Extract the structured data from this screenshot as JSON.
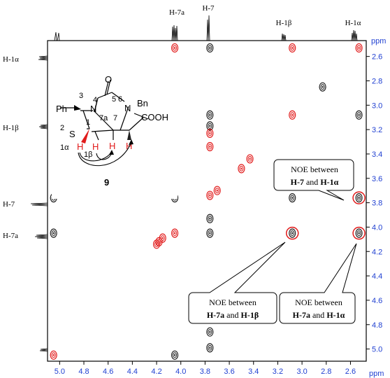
{
  "chart_data": {
    "type": "scatter",
    "title": "",
    "unit": "ppm",
    "x_axis": {
      "label": "ppm",
      "reversed": true,
      "range": [
        5.1,
        2.47
      ],
      "ticks": [
        5.0,
        4.8,
        4.6,
        4.4,
        4.2,
        4.0,
        3.8,
        3.6,
        3.4,
        3.2,
        3.0,
        2.8,
        2.6
      ],
      "tick_labels": [
        "5.0",
        "4.8",
        "4.6",
        "4.4",
        "4.2",
        "4.0",
        "3.8",
        "3.6",
        "3.4",
        "3.2",
        "3.0",
        "2.8",
        "2.6"
      ]
    },
    "y_axis": {
      "label": "ppm",
      "reversed": true,
      "range": [
        2.47,
        5.1
      ],
      "ticks": [
        2.6,
        2.8,
        3.0,
        3.2,
        3.4,
        3.6,
        3.8,
        4.0,
        4.2,
        4.4,
        4.6,
        4.8,
        5.0
      ],
      "tick_labels": [
        "2.6",
        "2.8",
        "3.0",
        "3.2",
        "3.4",
        "3.6",
        "3.8",
        "4.0",
        "4.2",
        "4.4",
        "4.6",
        "4.8",
        "5.0"
      ]
    },
    "top_peak_labels": [
      {
        "text": "H-7a",
        "ppm": 4.05
      },
      {
        "text": "H-7",
        "ppm": 3.76
      },
      {
        "text": "H-1β",
        "ppm": 3.08
      },
      {
        "text": "H-1α",
        "ppm": 2.53
      }
    ],
    "left_peak_labels": [
      {
        "text": "H-1α",
        "ppm": 2.53
      },
      {
        "text": "H-1β",
        "ppm": 3.08
      },
      {
        "text": "H-7",
        "ppm": 3.76
      },
      {
        "text": "H-7a",
        "ppm": 4.05
      }
    ],
    "series": [
      {
        "name": "positive",
        "color": "#222222",
        "points": [
          {
            "x": 3.76,
            "y": 2.53
          },
          {
            "x": 2.53,
            "y": 3.08
          },
          {
            "x": 3.76,
            "y": 3.08
          },
          {
            "x": 4.05,
            "y": 3.76
          },
          {
            "x": 3.08,
            "y": 3.76
          },
          {
            "x": 2.53,
            "y": 3.76
          },
          {
            "x": 5.05,
            "y": 4.05
          },
          {
            "x": 3.76,
            "y": 4.05
          },
          {
            "x": 3.08,
            "y": 4.05
          },
          {
            "x": 2.53,
            "y": 4.05
          },
          {
            "x": 4.05,
            "y": 5.05
          },
          {
            "x": 3.76,
            "y": 4.86
          },
          {
            "x": 3.76,
            "y": 4.99
          },
          {
            "x": 3.76,
            "y": 3.93
          },
          {
            "x": 3.76,
            "y": 3.17
          },
          {
            "x": 5.05,
            "y": 3.76
          },
          {
            "x": 2.83,
            "y": 2.85
          },
          {
            "x": 4.18,
            "y": 3.07
          }
        ]
      },
      {
        "name": "negative",
        "color": "#e11b1b",
        "points": [
          {
            "x": 4.05,
            "y": 2.53
          },
          {
            "x": 2.53,
            "y": 2.53
          },
          {
            "x": 3.08,
            "y": 2.53
          },
          {
            "x": 3.08,
            "y": 3.08
          },
          {
            "x": 3.76,
            "y": 3.23
          },
          {
            "x": 3.43,
            "y": 3.44
          },
          {
            "x": 3.5,
            "y": 3.52
          },
          {
            "x": 3.7,
            "y": 3.7
          },
          {
            "x": 3.76,
            "y": 3.74
          },
          {
            "x": 4.05,
            "y": 4.05
          },
          {
            "x": 5.05,
            "y": 5.05
          },
          {
            "x": 3.76,
            "y": 3.34
          },
          {
            "x": 3.76,
            "y": 4.7
          },
          {
            "x": 4.15,
            "y": 4.09
          },
          {
            "x": 4.18,
            "y": 4.12
          },
          {
            "x": 4.2,
            "y": 4.14
          }
        ]
      }
    ],
    "highlighted_peaks": [
      {
        "x": 2.53,
        "y": 3.76
      },
      {
        "x": 3.08,
        "y": 4.05
      },
      {
        "x": 2.53,
        "y": 4.05
      }
    ],
    "annotations": [
      {
        "lines": [
          [
            "NOE between",
            ""
          ],
          [
            "H-7",
            " and "
          ],
          [
            "H-1α",
            ""
          ]
        ],
        "rich": [
          {
            "t": "NOE between",
            "b": false
          }
        ],
        "target": {
          "x": 2.53,
          "y": 3.76
        }
      },
      {
        "lines": [
          "NOE between",
          "H-7a and H-1β"
        ],
        "target": {
          "x": 3.08,
          "y": 4.05
        }
      },
      {
        "lines": [
          "NOE between",
          "H-7a and H-1α"
        ],
        "target": {
          "x": 2.53,
          "y": 4.05
        }
      }
    ],
    "callout_text": {
      "c1_line1": "NOE between",
      "c1_a": "H-7",
      "c1_mid": " and ",
      "c1_b": "H-1α",
      "c2_line1": "NOE between",
      "c2_a": "H-7a",
      "c2_mid": " and ",
      "c2_b": "H-1β",
      "c3_line1": "NOE between",
      "c3_a": "H-7a",
      "c3_mid": " and ",
      "c3_b": "H-1α"
    },
    "grid": false,
    "legend": "none"
  },
  "molecule": {
    "compound_number": "9",
    "labels": {
      "ph": "Ph",
      "o": "O",
      "n4": "N",
      "n6": "N",
      "bn": "Bn",
      "s": "S",
      "cooh": "COOH",
      "h1a": "H",
      "h1b": "H",
      "h7a": "H",
      "h7": "H",
      "num3": "3",
      "num4": "4",
      "num5": "5",
      "num6": "6",
      "num2": "2",
      "num1": "1",
      "num7a": "7a",
      "num7": "7",
      "lab1a": "1α",
      "lab1b": "1β"
    }
  }
}
